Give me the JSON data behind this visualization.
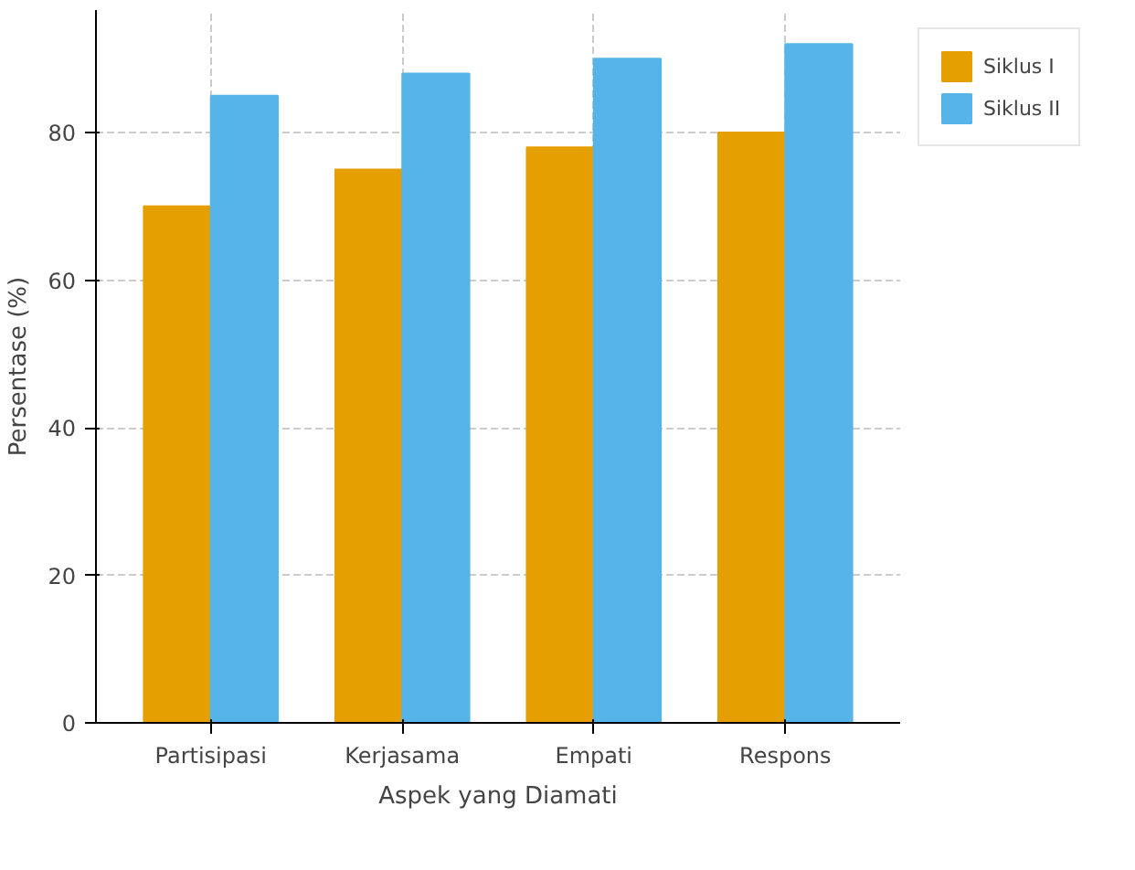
{
  "chart_data": {
    "type": "bar",
    "xlabel": "Aspek yang Diamati",
    "ylabel": "Persentase (%)",
    "categories": [
      "Partisipasi",
      "Kerjasama",
      "Empati",
      "Respons"
    ],
    "series": [
      {
        "name": "Siklus I",
        "color": "#e69f00",
        "values": [
          70,
          75,
          78,
          80
        ]
      },
      {
        "name": "Siklus II",
        "color": "#56b4e9",
        "values": [
          85,
          88,
          90,
          92
        ]
      }
    ],
    "ylim": [
      0,
      96.6
    ],
    "yticks": [
      0,
      20,
      40,
      60,
      80
    ],
    "grid": true,
    "legend": "top right"
  }
}
